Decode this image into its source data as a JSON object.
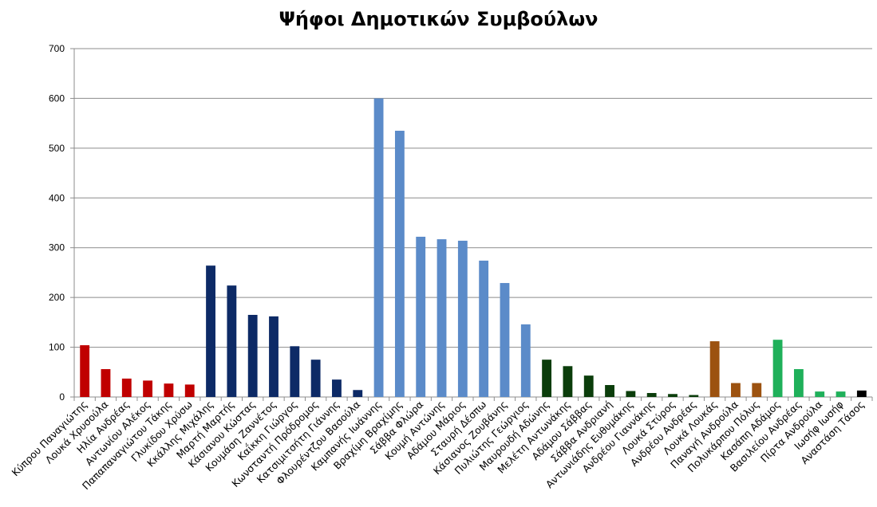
{
  "chart_data": {
    "type": "bar",
    "title": "Ψήφοι Δημοτικών Συμβούλων",
    "xlabel": "",
    "ylabel": "",
    "ylim": [
      0,
      700
    ],
    "yticks": [
      0,
      100,
      200,
      300,
      400,
      500,
      600,
      700
    ],
    "grid": true,
    "legend": "none",
    "categories": [
      "Κύπρου Παναγιώτης",
      "Λουκά Χρυσούλα",
      "Ηλία Ανδρέας",
      "Αντωνίου Αλέκος",
      "Παπαπαναγιώτου Τάκης",
      "Γλυκίδου Χρύσω",
      "Κκάλλης Μιχάλης",
      "Μαρτή Μαρτής",
      "Κάσιανου Κώστας",
      "Κουμάση Ζαννέτος",
      "Καΐκκη Γιώργος",
      "Κωνσταντή Πρόδρομος",
      "Κατσιμιτσήτη Γιάννης",
      "Φλουρέντζου Βασούλα",
      "Καμπανής Ιωάννης",
      "Βραχίμη Βραχίμης",
      "Σάββα Φλώρα",
      "Κουμή Αντώνης",
      "Αδάμου Μάριος",
      "Σταυρή Δέσπω",
      "Κάσιανος Ζουβάνης",
      "Πυλιώτης Γεώργιος",
      "Μαυρουδή Αδώνης",
      "Μελέτη Αντωνάκης",
      "Αδάμου Σάββας",
      "Σάββα Ανδριανή",
      "Αντωνιάδης Ευθυμάκης",
      "Ανδρέου Γιαννάκης",
      "Λουκά Στύρος",
      "Ανδρέου Ανδρέας",
      "Λουκά Λουκάς",
      "Παναγή Ανδρούλα",
      "Πολυκάρπου Πόλυς",
      "Κασάπη Αδάμος",
      "Βασιλείου Ανδρέας",
      "Πίρτα Ανδρούλα",
      "Ιωσήφ Ιωσήφ",
      "Αναστάση Τάσος"
    ],
    "values": [
      104,
      56,
      37,
      33,
      27,
      25,
      264,
      224,
      165,
      162,
      102,
      75,
      35,
      14,
      600,
      535,
      322,
      317,
      314,
      274,
      229,
      146,
      75,
      62,
      43,
      24,
      12,
      8,
      6,
      4,
      112,
      28,
      28,
      115,
      56,
      11,
      11,
      13
    ],
    "colors": [
      "#c00000",
      "#c00000",
      "#c00000",
      "#c00000",
      "#c00000",
      "#c00000",
      "#0d2a66",
      "#0d2a66",
      "#0d2a66",
      "#0d2a66",
      "#0d2a66",
      "#0d2a66",
      "#0d2a66",
      "#0d2a66",
      "#5b8bc9",
      "#5b8bc9",
      "#5b8bc9",
      "#5b8bc9",
      "#5b8bc9",
      "#5b8bc9",
      "#5b8bc9",
      "#5b8bc9",
      "#0b3d0b",
      "#0b3d0b",
      "#0b3d0b",
      "#0b3d0b",
      "#0b3d0b",
      "#0b3d0b",
      "#0b3d0b",
      "#0b3d0b",
      "#9c5210",
      "#9c5210",
      "#9c5210",
      "#1fb05a",
      "#1fb05a",
      "#1fb05a",
      "#1fb05a",
      "#000000"
    ],
    "grid_color": "#8c8c8c",
    "axis_color": "#8c8c8c"
  }
}
